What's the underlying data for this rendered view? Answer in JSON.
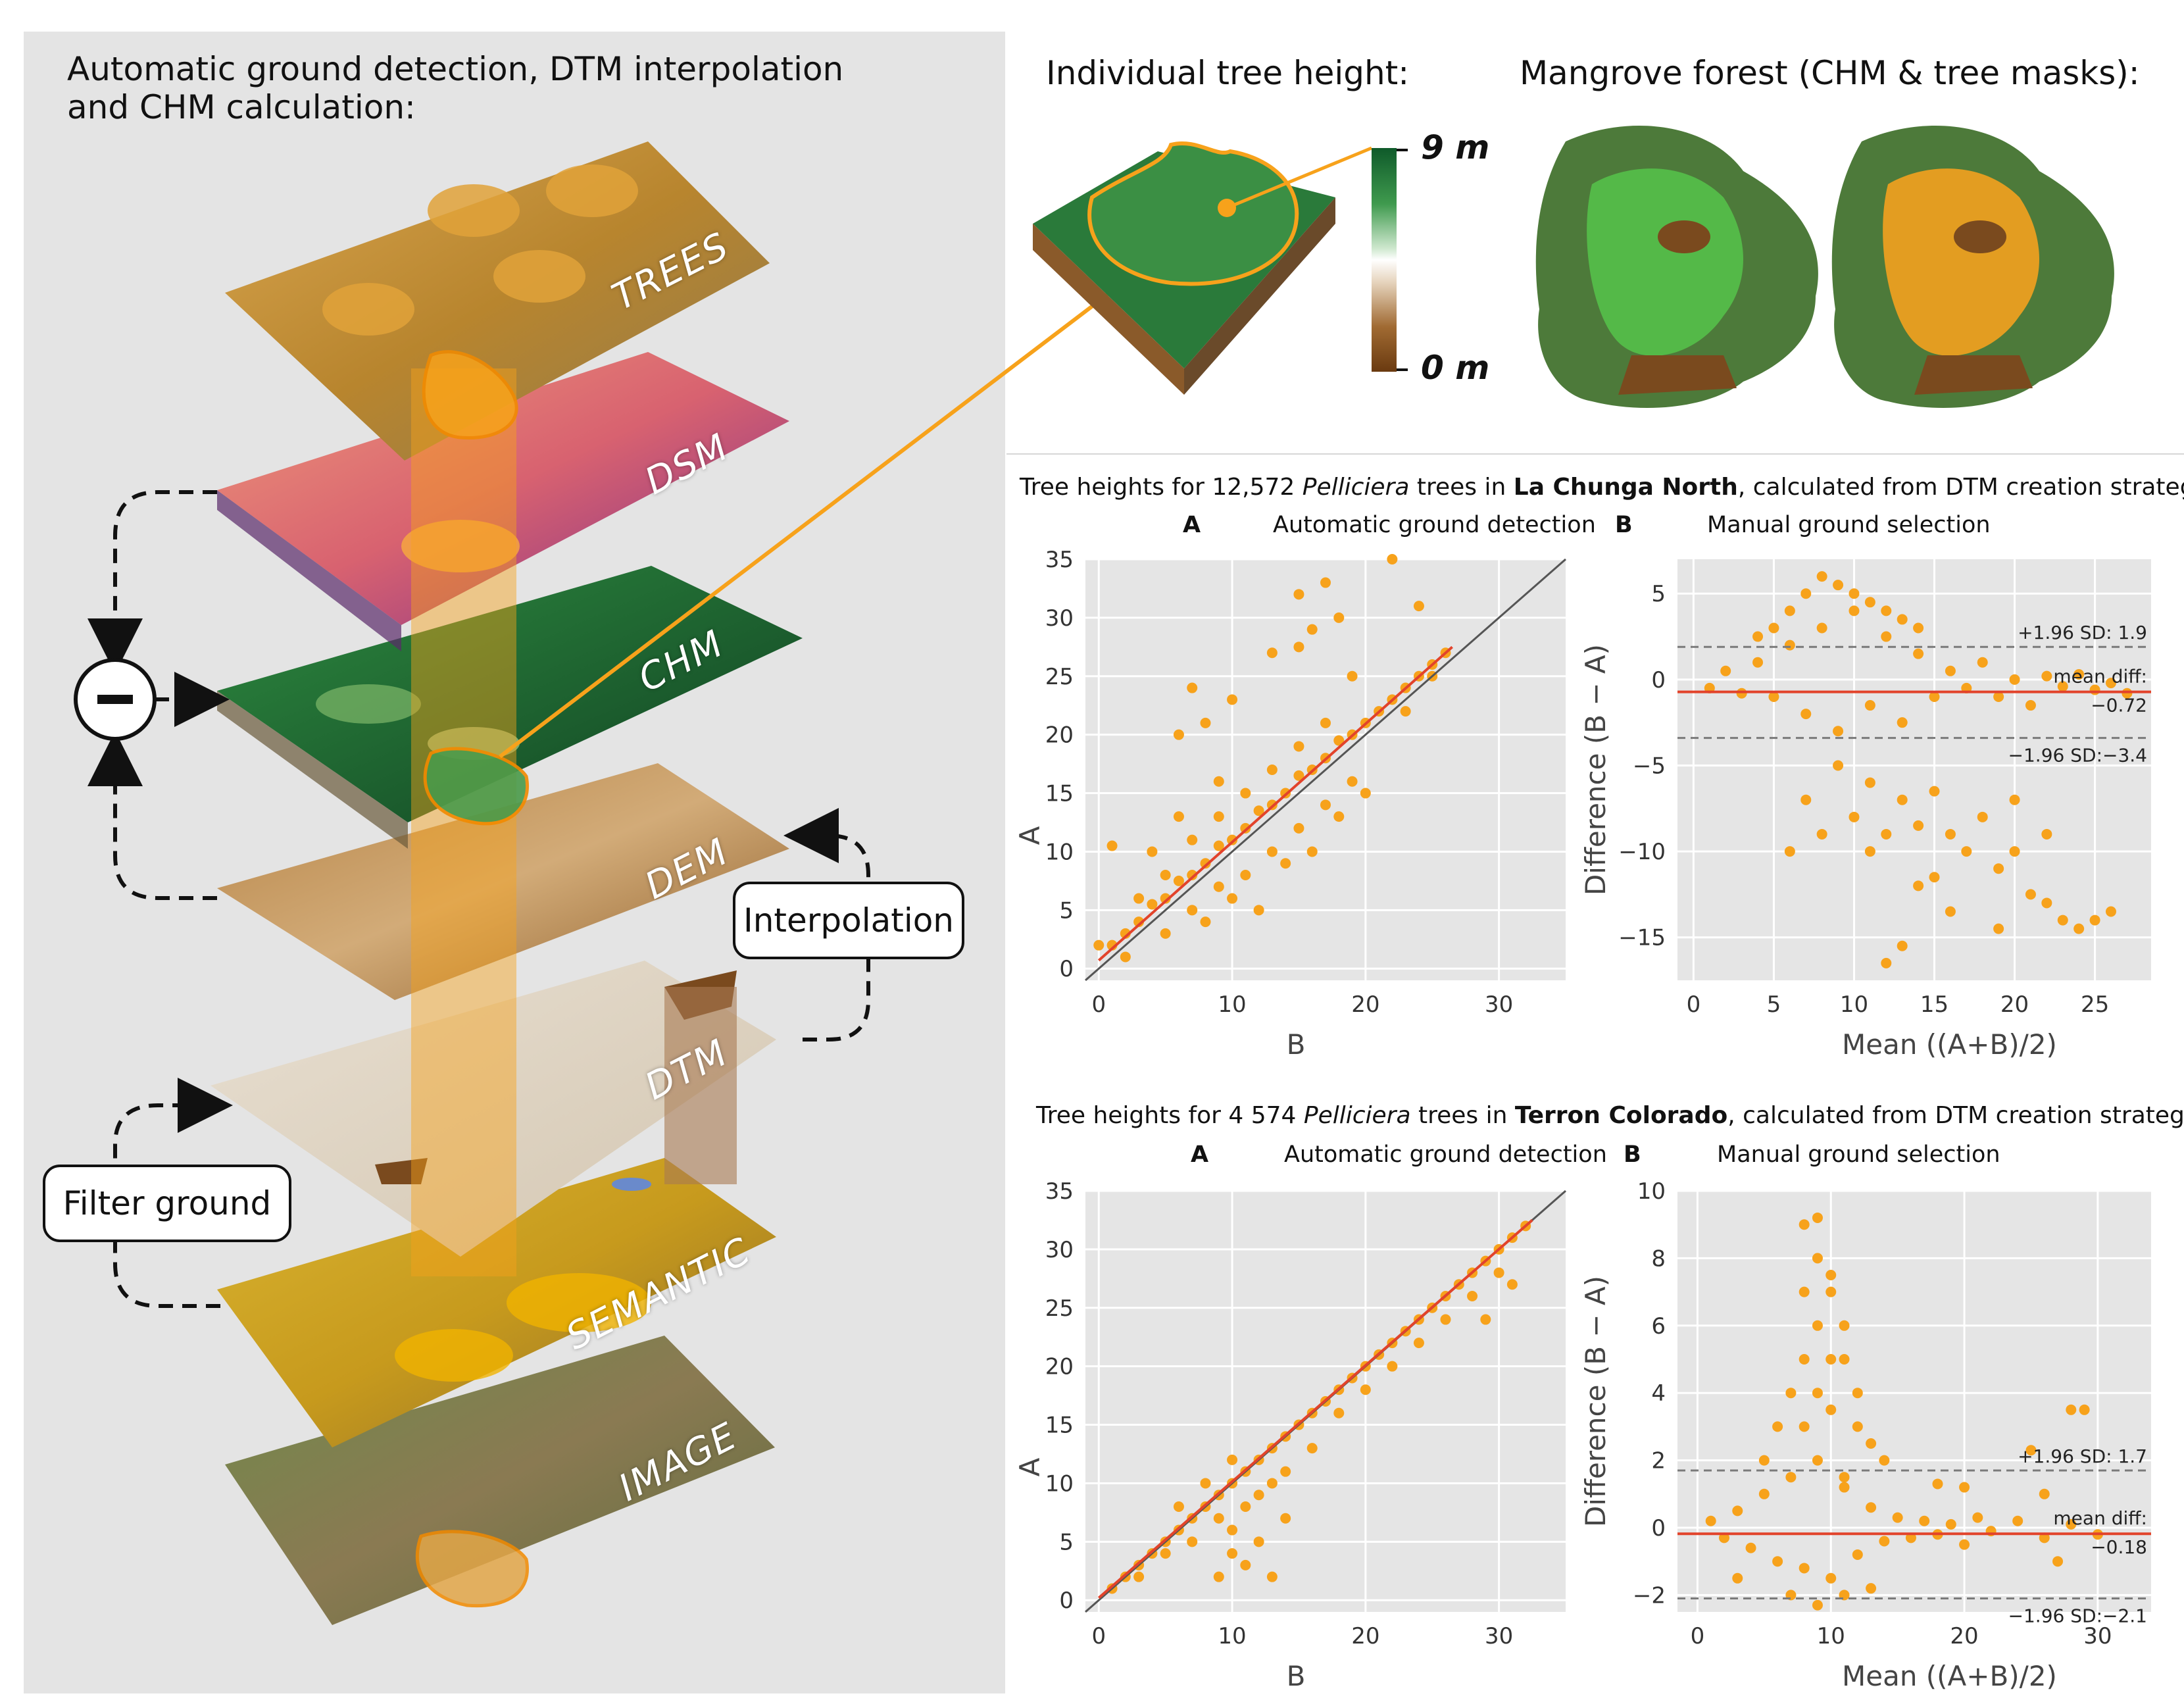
{
  "left": {
    "title_line1": "Automatic ground detection, DTM interpolation",
    "title_line2": "and CHM calculation:",
    "layers": [
      "TREES",
      "DSM",
      "CHM",
      "DEM",
      "DTM",
      "SEMANTIC",
      "IMAGE"
    ],
    "interpolation_label": "Interpolation",
    "filter_label": "Filter ground",
    "minus_symbol": "−"
  },
  "top": {
    "tree_height_title": "Individual tree height:",
    "mangrove_title": "Mangrove forest (CHM & tree masks):",
    "legend_max": "9 m",
    "legend_min": "0 m"
  },
  "colors": {
    "orange": "#f7a21b",
    "regression": "#e2432b",
    "panel_bg": "#e5e5e5",
    "grid": "#ffffff",
    "dashed": "#7a7a7a",
    "chm_green": "#1e6b32",
    "soil_brown": "#7a4a1e"
  },
  "section1": {
    "title_prefix": "Tree heights for 12,572 ",
    "title_species": "Pelliciera",
    "title_mid": " trees in ",
    "title_site": "La Chunga North",
    "title_suffix": ", calculated from DTM creation strategies:",
    "a_letter": "A",
    "a_text": "Automatic ground detection",
    "b_letter": "B",
    "b_text": "Manual ground selection"
  },
  "section2": {
    "title_prefix": "Tree heights for 4 574 ",
    "title_species": "Pelliciera",
    "title_mid": " trees in ",
    "title_site": "Terron Colorado",
    "title_suffix": ", calculated from DTM creation strategies:",
    "a_letter": "A",
    "a_text": "Automatic ground detection",
    "b_letter": "B",
    "b_text": "Manual ground selection"
  },
  "chart_data": [
    {
      "type": "scatter",
      "id": "scatter1",
      "xlabel": "B",
      "ylabel": "A",
      "xlim": [
        -1,
        35
      ],
      "ylim": [
        -1,
        35
      ],
      "xticks": [
        0,
        10,
        20,
        30
      ],
      "yticks": [
        0,
        5,
        10,
        15,
        20,
        25,
        30,
        35
      ],
      "identity_line": [
        [
          -1,
          -1
        ],
        [
          35,
          35
        ]
      ],
      "regression_line": [
        [
          0,
          0.7
        ],
        [
          26.5,
          27.5
        ]
      ],
      "points": [
        [
          2,
          3
        ],
        [
          3,
          4
        ],
        [
          4,
          5.5
        ],
        [
          5,
          6
        ],
        [
          6,
          7.5
        ],
        [
          7,
          8
        ],
        [
          8,
          9
        ],
        [
          9,
          10.5
        ],
        [
          10,
          11
        ],
        [
          11,
          12
        ],
        [
          12,
          13.5
        ],
        [
          13,
          14
        ],
        [
          14,
          15
        ],
        [
          15,
          16.5
        ],
        [
          16,
          17
        ],
        [
          17,
          18
        ],
        [
          18,
          19.5
        ],
        [
          19,
          20
        ],
        [
          20,
          21
        ],
        [
          21,
          22
        ],
        [
          22,
          23
        ],
        [
          23,
          24
        ],
        [
          24,
          25
        ],
        [
          25,
          26
        ],
        [
          26,
          27
        ],
        [
          3,
          6
        ],
        [
          5,
          8
        ],
        [
          7,
          11
        ],
        [
          9,
          13
        ],
        [
          11,
          15
        ],
        [
          13,
          17
        ],
        [
          15,
          19
        ],
        [
          17,
          21
        ],
        [
          5,
          3
        ],
        [
          7,
          5
        ],
        [
          9,
          7
        ],
        [
          11,
          8
        ],
        [
          13,
          10
        ],
        [
          15,
          12
        ],
        [
          17,
          14
        ],
        [
          19,
          16
        ],
        [
          1,
          2
        ],
        [
          2,
          1
        ],
        [
          0,
          2
        ],
        [
          1,
          10.5
        ],
        [
          6,
          20
        ],
        [
          8,
          21
        ],
        [
          7,
          24
        ],
        [
          10,
          23
        ],
        [
          13,
          27
        ],
        [
          15,
          27.5
        ],
        [
          16,
          29
        ],
        [
          15,
          32
        ],
        [
          17,
          33
        ],
        [
          18,
          30
        ],
        [
          22,
          35
        ],
        [
          24,
          31
        ],
        [
          19,
          25
        ],
        [
          23,
          22
        ],
        [
          25,
          25
        ],
        [
          4,
          10
        ],
        [
          6,
          13
        ],
        [
          9,
          16
        ],
        [
          8,
          4
        ],
        [
          10,
          6
        ],
        [
          12,
          5
        ],
        [
          14,
          9
        ],
        [
          16,
          10
        ],
        [
          18,
          13
        ],
        [
          20,
          15
        ]
      ]
    },
    {
      "type": "scatter",
      "id": "bland1",
      "xlabel": "Mean",
      "ylabel": "Difference (B − A)",
      "xlim": [
        -1,
        28.5
      ],
      "ylim": [
        -17.5,
        7
      ],
      "xticks": [
        0,
        5,
        10,
        15,
        20,
        25
      ],
      "yticks": [
        -15,
        -10,
        -5,
        0,
        5
      ],
      "mean_diff": -0.72,
      "upper_loa": 1.9,
      "lower_loa": -3.4,
      "upper_label": "+1.96 SD: 1.9",
      "mean_label_1": "mean diff:",
      "mean_label_2": "−0.72",
      "lower_label": "−1.96 SD:−3.4",
      "points": [
        [
          1,
          -0.5
        ],
        [
          2,
          0.5
        ],
        [
          3,
          -0.8
        ],
        [
          4,
          1
        ],
        [
          5,
          -1
        ],
        [
          6,
          2
        ],
        [
          7,
          -2
        ],
        [
          8,
          3
        ],
        [
          9,
          -3
        ],
        [
          10,
          4
        ],
        [
          11,
          -1.5
        ],
        [
          12,
          2.5
        ],
        [
          13,
          -2.5
        ],
        [
          14,
          1.5
        ],
        [
          15,
          -1
        ],
        [
          16,
          0.5
        ],
        [
          17,
          -0.5
        ],
        [
          18,
          1
        ],
        [
          19,
          -1
        ],
        [
          20,
          0
        ],
        [
          21,
          -1.5
        ],
        [
          22,
          0.2
        ],
        [
          23,
          -0.4
        ],
        [
          24,
          0.3
        ],
        [
          25,
          -0.6
        ],
        [
          26,
          -0.2
        ],
        [
          27,
          -0.8
        ],
        [
          8,
          6
        ],
        [
          9,
          5.5
        ],
        [
          10,
          5
        ],
        [
          11,
          4.5
        ],
        [
          7,
          5
        ],
        [
          12,
          4
        ],
        [
          6,
          4
        ],
        [
          13,
          3.5
        ],
        [
          5,
          3
        ],
        [
          14,
          3
        ],
        [
          4,
          2.5
        ],
        [
          9,
          -5
        ],
        [
          11,
          -6
        ],
        [
          13,
          -7
        ],
        [
          10,
          -8
        ],
        [
          12,
          -9
        ],
        [
          14,
          -8.5
        ],
        [
          16,
          -9
        ],
        [
          8,
          -9
        ],
        [
          6,
          -10
        ],
        [
          7,
          -7
        ],
        [
          15,
          -6.5
        ],
        [
          17,
          -10
        ],
        [
          19,
          -11
        ],
        [
          18,
          -8
        ],
        [
          20,
          -7
        ],
        [
          22,
          -9
        ],
        [
          14,
          -12
        ],
        [
          13,
          -15.5
        ],
        [
          12,
          -16.5
        ],
        [
          16,
          -13.5
        ],
        [
          19,
          -14.5
        ],
        [
          21,
          -12.5
        ],
        [
          22,
          -13
        ],
        [
          23,
          -14
        ],
        [
          25,
          -14
        ],
        [
          24,
          -14.5
        ],
        [
          26,
          -13.5
        ],
        [
          11,
          -10
        ],
        [
          15,
          -11.5
        ],
        [
          20,
          -10
        ]
      ]
    },
    {
      "type": "scatter",
      "id": "scatter2",
      "xlabel": "B",
      "ylabel": "A",
      "xlim": [
        -1,
        35
      ],
      "ylim": [
        -1,
        35
      ],
      "xticks": [
        0,
        10,
        20,
        30
      ],
      "yticks": [
        0,
        5,
        10,
        15,
        20,
        25,
        30,
        35
      ],
      "identity_line": [
        [
          -1,
          -1
        ],
        [
          35,
          35
        ]
      ],
      "regression_line": [
        [
          0,
          0.2
        ],
        [
          32.5,
          32.5
        ]
      ],
      "points": [
        [
          1,
          1
        ],
        [
          2,
          2
        ],
        [
          3,
          3
        ],
        [
          4,
          4
        ],
        [
          5,
          5
        ],
        [
          6,
          6
        ],
        [
          7,
          7
        ],
        [
          8,
          8
        ],
        [
          9,
          9
        ],
        [
          10,
          10
        ],
        [
          11,
          11
        ],
        [
          12,
          12
        ],
        [
          13,
          13
        ],
        [
          14,
          14
        ],
        [
          15,
          15
        ],
        [
          16,
          16
        ],
        [
          17,
          17
        ],
        [
          18,
          18
        ],
        [
          19,
          19
        ],
        [
          20,
          20
        ],
        [
          21,
          21
        ],
        [
          22,
          22
        ],
        [
          23,
          23
        ],
        [
          24,
          24
        ],
        [
          25,
          25
        ],
        [
          26,
          26
        ],
        [
          27,
          27
        ],
        [
          28,
          28
        ],
        [
          29,
          29
        ],
        [
          30,
          30
        ],
        [
          31,
          31
        ],
        [
          32,
          32
        ],
        [
          3,
          2
        ],
        [
          5,
          4
        ],
        [
          7,
          5
        ],
        [
          9,
          7
        ],
        [
          10,
          6
        ],
        [
          11,
          8
        ],
        [
          12,
          9
        ],
        [
          13,
          10
        ],
        [
          14,
          11
        ],
        [
          10,
          4
        ],
        [
          11,
          3
        ],
        [
          12,
          5
        ],
        [
          9,
          2
        ],
        [
          13,
          2
        ],
        [
          14,
          7
        ],
        [
          16,
          13
        ],
        [
          18,
          16
        ],
        [
          20,
          18
        ],
        [
          22,
          20
        ],
        [
          24,
          22
        ],
        [
          26,
          24
        ],
        [
          28,
          26
        ],
        [
          30,
          28
        ],
        [
          29,
          24
        ],
        [
          31,
          27
        ],
        [
          8,
          10
        ],
        [
          10,
          12
        ],
        [
          6,
          8
        ]
      ]
    },
    {
      "type": "scatter",
      "id": "bland2",
      "xlabel": "Mean",
      "ylabel": "Difference (B − A)",
      "xlim": [
        -1.5,
        34
      ],
      "ylim": [
        -2.5,
        10
      ],
      "xticks": [
        0,
        10,
        20,
        30
      ],
      "yticks": [
        -2,
        0,
        2,
        4,
        6,
        8,
        10
      ],
      "mean_diff": -0.18,
      "upper_loa": 1.7,
      "lower_loa": -2.1,
      "upper_label": "+1.96 SD: 1.7",
      "mean_label_1": "mean diff:",
      "mean_label_2": "−0.18",
      "lower_label": "−1.96 SD:−2.1",
      "points": [
        [
          1,
          0.2
        ],
        [
          2,
          -0.3
        ],
        [
          3,
          0.5
        ],
        [
          4,
          -0.6
        ],
        [
          5,
          1
        ],
        [
          6,
          -1
        ],
        [
          7,
          1.5
        ],
        [
          8,
          -1.2
        ],
        [
          9,
          2
        ],
        [
          10,
          -1.5
        ],
        [
          11,
          1.2
        ],
        [
          12,
          -0.8
        ],
        [
          13,
          0.6
        ],
        [
          14,
          -0.4
        ],
        [
          15,
          0.3
        ],
        [
          16,
          -0.3
        ],
        [
          17,
          0.2
        ],
        [
          18,
          -0.2
        ],
        [
          19,
          0.1
        ],
        [
          20,
          -0.5
        ],
        [
          21,
          0.3
        ],
        [
          22,
          -0.1
        ],
        [
          24,
          0.2
        ],
        [
          26,
          -0.3
        ],
        [
          28,
          0.1
        ],
        [
          30,
          -0.2
        ],
        [
          8,
          3
        ],
        [
          9,
          4
        ],
        [
          10,
          5
        ],
        [
          9,
          6
        ],
        [
          10,
          7
        ],
        [
          9,
          8
        ],
        [
          8,
          9
        ],
        [
          9,
          9.2
        ],
        [
          10,
          7.5
        ],
        [
          11,
          6
        ],
        [
          8,
          7
        ],
        [
          11,
          5
        ],
        [
          7,
          4
        ],
        [
          12,
          3
        ],
        [
          6,
          3
        ],
        [
          13,
          2.5
        ],
        [
          5,
          2
        ],
        [
          14,
          2
        ],
        [
          8,
          5
        ],
        [
          10,
          3.5
        ],
        [
          12,
          4
        ],
        [
          11,
          1.5
        ],
        [
          7,
          -2
        ],
        [
          9,
          -2.3
        ],
        [
          11,
          -2
        ],
        [
          13,
          -1.8
        ],
        [
          25,
          2.3
        ],
        [
          28,
          3.5
        ],
        [
          29,
          3.5
        ],
        [
          26,
          1
        ],
        [
          27,
          -1
        ],
        [
          20,
          1.2
        ],
        [
          18,
          1.3
        ],
        [
          3,
          -1.5
        ]
      ]
    }
  ]
}
